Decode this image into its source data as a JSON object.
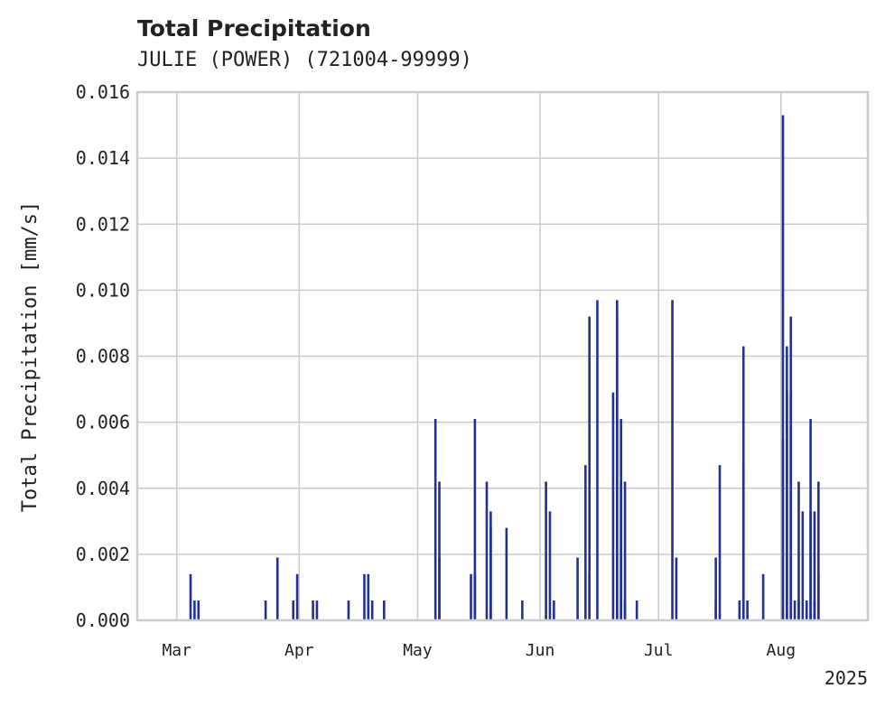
{
  "chart_data": {
    "type": "bar",
    "title": "Total Precipitation",
    "subtitle": "JULIE (POWER) (721004-99999)",
    "ylabel": "Total Precipitation [mm/s]",
    "xlabel": "",
    "ylim": [
      0,
      0.016
    ],
    "yticks": [
      "0.000",
      "0.002",
      "0.004",
      "0.006",
      "0.008",
      "0.010",
      "0.012",
      "0.014",
      "0.016"
    ],
    "xlim": [
      "2025-02-19",
      "2025-08-23"
    ],
    "xticks": [
      {
        "date": "2025-03-01",
        "label": "Mar"
      },
      {
        "date": "2025-04-01",
        "label": "Apr"
      },
      {
        "date": "2025-05-01",
        "label": "May"
      },
      {
        "date": "2025-06-01",
        "label": "Jun"
      },
      {
        "date": "2025-07-01",
        "label": "Jul"
      },
      {
        "date": "2025-08-01",
        "label": "Aug"
      }
    ],
    "x_offset_label": "2025",
    "grid": true,
    "color": "#23318f",
    "series": [
      {
        "points": [
          [
            "2025-03-04",
            0.0014
          ],
          [
            "2025-03-05",
            0.0006
          ],
          [
            "2025-03-06",
            0.0006
          ],
          [
            "2025-03-23",
            0.0006
          ],
          [
            "2025-03-26",
            0.0019
          ],
          [
            "2025-03-30",
            0.0006
          ],
          [
            "2025-03-31",
            0.0014
          ],
          [
            "2025-04-04",
            0.0006
          ],
          [
            "2025-04-05",
            0.0006
          ],
          [
            "2025-04-13",
            0.0006
          ],
          [
            "2025-04-17",
            0.0014
          ],
          [
            "2025-04-18",
            0.0014
          ],
          [
            "2025-04-19",
            0.0006
          ],
          [
            "2025-04-22",
            0.0006
          ],
          [
            "2025-05-05",
            0.0061
          ],
          [
            "2025-05-06",
            0.0042
          ],
          [
            "2025-05-06",
            0.0019
          ],
          [
            "2025-05-14",
            0.0014
          ],
          [
            "2025-05-15",
            0.0014
          ],
          [
            "2025-05-15",
            0.0061
          ],
          [
            "2025-05-18",
            0.0042
          ],
          [
            "2025-05-19",
            0.0033
          ],
          [
            "2025-05-19",
            0.0028
          ],
          [
            "2025-05-23",
            0.0028
          ],
          [
            "2025-05-27",
            0.0006
          ],
          [
            "2025-06-02",
            0.0042
          ],
          [
            "2025-06-03",
            0.0033
          ],
          [
            "2025-06-04",
            0.0006
          ],
          [
            "2025-06-10",
            0.0019
          ],
          [
            "2025-06-12",
            0.0047
          ],
          [
            "2025-06-13",
            0.0092
          ],
          [
            "2025-06-13",
            0.0014
          ],
          [
            "2025-06-15",
            0.0097
          ],
          [
            "2025-06-19",
            0.0069
          ],
          [
            "2025-06-20",
            0.0097
          ],
          [
            "2025-06-20",
            0.0092
          ],
          [
            "2025-06-21",
            0.0061
          ],
          [
            "2025-06-21",
            0.0042
          ],
          [
            "2025-06-22",
            0.0006
          ],
          [
            "2025-06-22",
            0.0042
          ],
          [
            "2025-06-25",
            0.0006
          ],
          [
            "2025-07-04",
            0.0097
          ],
          [
            "2025-07-05",
            0.0019
          ],
          [
            "2025-07-15",
            0.0006
          ],
          [
            "2025-07-15",
            0.0019
          ],
          [
            "2025-07-16",
            0.0047
          ],
          [
            "2025-07-21",
            0.0006
          ],
          [
            "2025-07-22",
            0.0047
          ],
          [
            "2025-07-22",
            0.0083
          ],
          [
            "2025-07-23",
            0.0006
          ],
          [
            "2025-07-27",
            0.0014
          ],
          [
            "2025-08-01",
            0.0153
          ],
          [
            "2025-08-01",
            0.0055
          ],
          [
            "2025-08-02",
            0.0069
          ],
          [
            "2025-08-02",
            0.0083
          ],
          [
            "2025-08-03",
            0.0092
          ],
          [
            "2025-08-03",
            0.0069
          ],
          [
            "2025-08-04",
            0.0006
          ],
          [
            "2025-08-05",
            0.0006
          ],
          [
            "2025-08-05",
            0.0042
          ],
          [
            "2025-08-06",
            0.0033
          ],
          [
            "2025-08-07",
            0.0006
          ],
          [
            "2025-08-08",
            0.0061
          ],
          [
            "2025-08-08",
            0.0033
          ],
          [
            "2025-08-09",
            0.0033
          ],
          [
            "2025-08-09",
            0.0006
          ],
          [
            "2025-08-10",
            0.0042
          ],
          [
            "2025-08-10",
            0.0014
          ]
        ]
      }
    ]
  }
}
